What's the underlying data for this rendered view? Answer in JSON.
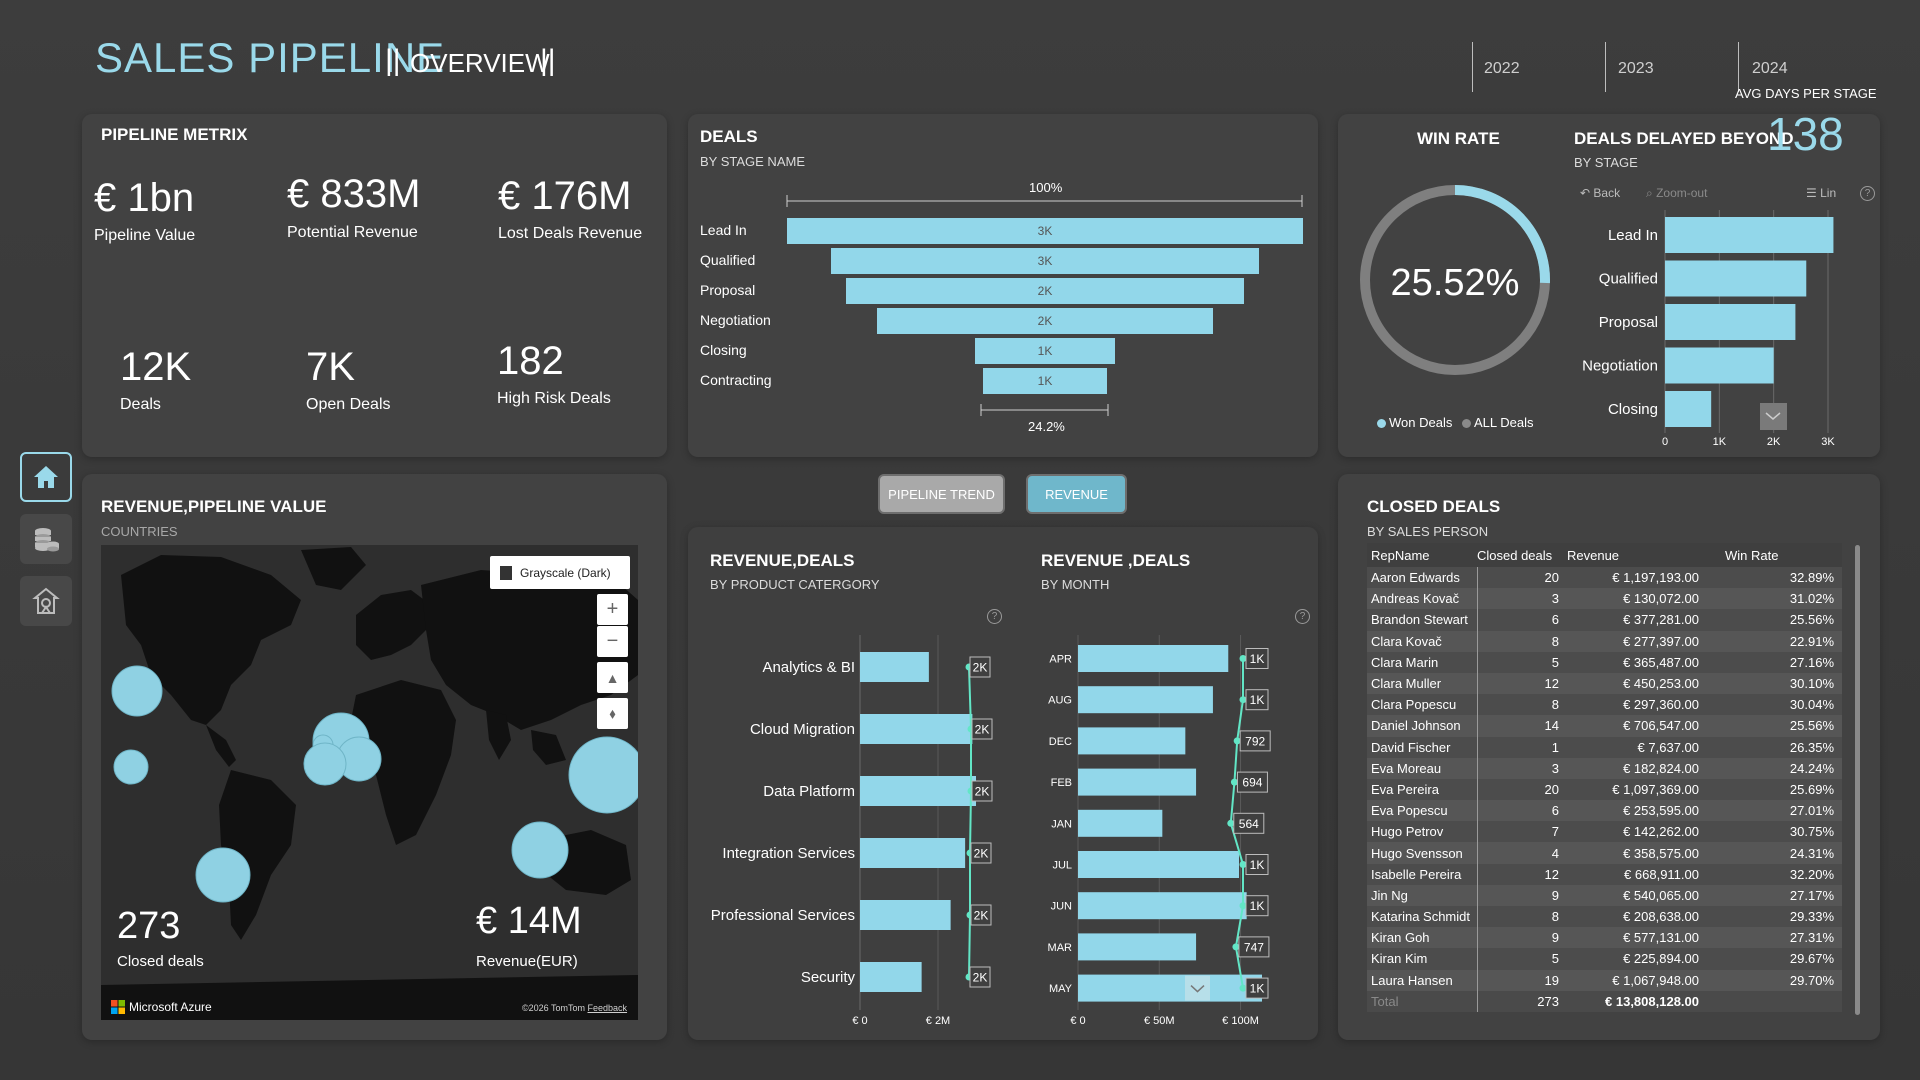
{
  "header": {
    "title": "SALES PIPELINE",
    "sep_left": "||",
    "subtitle": "OVERVIEW",
    "sep_right": "||",
    "years": [
      "2022",
      "2023",
      "2024"
    ],
    "avg_days_label": "AVG DAYS PER STAGE"
  },
  "nav": {
    "items": [
      {
        "name": "home-icon"
      },
      {
        "name": "database-icon"
      },
      {
        "name": "pipeline-icon"
      }
    ]
  },
  "pipeline_metrix": {
    "title": "PIPELINE METRIX",
    "metrics": [
      {
        "value": "€ 1bn",
        "label": "Pipeline Value"
      },
      {
        "value": "€ 833M",
        "label": "Potential Revenue"
      },
      {
        "value": "€ 176M",
        "label": "Lost Deals Revenue"
      },
      {
        "value": "12K",
        "label": "Deals"
      },
      {
        "value": "7K",
        "label": "Open Deals"
      },
      {
        "value": "182",
        "label": "High Risk Deals"
      }
    ]
  },
  "deals_funnel": {
    "title": "DEALS",
    "subtitle": "BY STAGE NAME",
    "top_pct": "100%",
    "bottom_pct": "24.2%",
    "stages": [
      {
        "label": "Lead In",
        "value_label": "3K",
        "fraction": 1.0
      },
      {
        "label": "Qualified",
        "value_label": "3K",
        "fraction": 0.83
      },
      {
        "label": "Proposal",
        "value_label": "2K",
        "fraction": 0.77
      },
      {
        "label": "Negotiation",
        "value_label": "2K",
        "fraction": 0.65
      },
      {
        "label": "Closing",
        "value_label": "1K",
        "fraction": 0.27
      },
      {
        "label": "Contracting",
        "value_label": "1K",
        "fraction": 0.242
      }
    ]
  },
  "win_rate": {
    "title": "WIN RATE",
    "value": "25.52%",
    "fraction": 0.2552,
    "legend": [
      "Won Deals",
      "ALL Deals"
    ],
    "colors": {
      "won": "#9ad9ea",
      "all": "#8a8a8a"
    }
  },
  "deals_delayed": {
    "title": "DEALS DELAYED BEYOND",
    "value": "138",
    "subtitle": "BY STAGE",
    "toolbar": {
      "back": "Back",
      "zoom": "Zoom-out",
      "lin": "Lin"
    },
    "ticks": [
      "0",
      "1K",
      "2K",
      "3K"
    ]
  },
  "map_panel": {
    "title": "REVENUE,PIPELINE VALUE",
    "subtitle": "COUNTRIES",
    "style_selector": "Grayscale (Dark)",
    "closed_deals_value": "273",
    "closed_deals_label": "Closed deals",
    "revenue_value": "€ 14M",
    "revenue_label": "Revenue(EUR)",
    "brand": "Microsoft Azure",
    "copyright": "©2026 TomTom",
    "feedback": "Feedback"
  },
  "tabs": {
    "pipeline_trend": "PIPELINE TREND",
    "revenue": "REVENUE"
  },
  "chart_data": [
    {
      "type": "bar",
      "title": "DEALS",
      "subtitle": "BY STAGE NAME",
      "categories": [
        "Lead In",
        "Qualified",
        "Proposal",
        "Negotiation",
        "Closing",
        "Contracting"
      ],
      "values": [
        3000,
        2500,
        2300,
        1950,
        820,
        730
      ],
      "data_labels": [
        "3K",
        "3K",
        "2K",
        "2K",
        "1K",
        "1K"
      ]
    },
    {
      "type": "bar",
      "title": "DEALS DELAYED BEYOND",
      "subtitle": "BY STAGE",
      "categories": [
        "Lead In",
        "Qualified",
        "Proposal",
        "Negotiation",
        "Closing"
      ],
      "values": [
        3100,
        2600,
        2400,
        2000,
        850
      ],
      "xlim": [
        0,
        3000
      ],
      "ticks": [
        "0",
        "1K",
        "2K",
        "3K"
      ]
    },
    {
      "type": "bar",
      "title": "REVENUE,DEALS",
      "subtitle": "BY PRODUCT CATERGORY",
      "categories": [
        "Analytics & BI",
        "Cloud Migration",
        "Data Platform",
        "Integration Services",
        "Professional Services",
        "Security"
      ],
      "values": [
        1.9,
        3.1,
        3.2,
        2.9,
        2.5,
        1.7
      ],
      "line_labels": [
        "2K",
        "2K",
        "2K",
        "2K",
        "2K",
        "2K"
      ],
      "line_values": [
        1.95,
        2.05,
        2.05,
        2.0,
        2.0,
        1.95
      ],
      "x_ticks": [
        "€ 0",
        "€ 2M"
      ]
    },
    {
      "type": "bar",
      "title": "REVENUE ,DEALS",
      "subtitle": "BY MONTH",
      "categories": [
        "APR",
        "AUG",
        "DEC",
        "FEB",
        "JAN",
        "JUL",
        "JUN",
        "MAR",
        "MAY"
      ],
      "values": [
        98,
        88,
        70,
        77,
        55,
        105,
        110,
        77,
        120
      ],
      "line_labels": [
        "1K",
        "1K",
        "792",
        "694",
        "564",
        "1K",
        "1K",
        "747",
        "1K"
      ],
      "line_values": [
        1000,
        1000,
        792,
        694,
        564,
        1000,
        1000,
        747,
        1000
      ],
      "x_ticks": [
        "€ 0",
        "€ 50M",
        "€ 100M"
      ]
    }
  ],
  "revenue_product": {
    "title": "REVENUE,DEALS",
    "subtitle": "BY PRODUCT CATERGORY"
  },
  "revenue_month": {
    "title": "REVENUE ,DEALS",
    "subtitle": "BY MONTH"
  },
  "closed_deals": {
    "title": "CLOSED DEALS",
    "subtitle": "BY SALES PERSON",
    "columns": [
      "RepName",
      "Closed deals",
      "Revenue",
      "Win Rate"
    ],
    "rows": [
      [
        "Aaron Edwards",
        "20",
        "€ 1,197,193.00",
        "32.89%"
      ],
      [
        "Andreas Kovač",
        "3",
        "€ 130,072.00",
        "31.02%"
      ],
      [
        "Brandon Stewart",
        "6",
        "€ 377,281.00",
        "25.56%"
      ],
      [
        "Clara Kovač",
        "8",
        "€ 277,397.00",
        "22.91%"
      ],
      [
        "Clara Marin",
        "5",
        "€ 365,487.00",
        "27.16%"
      ],
      [
        "Clara Muller",
        "12",
        "€ 450,253.00",
        "30.10%"
      ],
      [
        "Clara Popescu",
        "8",
        "€ 297,360.00",
        "30.04%"
      ],
      [
        "Daniel Johnson",
        "14",
        "€ 706,547.00",
        "25.56%"
      ],
      [
        "David Fischer",
        "1",
        "€ 7,637.00",
        "26.35%"
      ],
      [
        "Eva Moreau",
        "3",
        "€ 182,824.00",
        "24.24%"
      ],
      [
        "Eva Pereira",
        "20",
        "€ 1,097,369.00",
        "25.69%"
      ],
      [
        "Eva Popescu",
        "6",
        "€ 253,595.00",
        "27.01%"
      ],
      [
        "Hugo Petrov",
        "7",
        "€ 142,262.00",
        "30.75%"
      ],
      [
        "Hugo Svensson",
        "4",
        "€ 358,575.00",
        "24.31%"
      ],
      [
        "Isabelle Pereira",
        "12",
        "€ 668,911.00",
        "32.20%"
      ],
      [
        "Jin Ng",
        "9",
        "€ 540,065.00",
        "27.17%"
      ],
      [
        "Katarina Schmidt",
        "8",
        "€ 208,638.00",
        "29.33%"
      ],
      [
        "Kiran Goh",
        "9",
        "€ 577,131.00",
        "27.31%"
      ],
      [
        "Kiran Kim",
        "5",
        "€ 225,894.00",
        "29.67%"
      ],
      [
        "Laura Hansen",
        "19",
        "€ 1,067,948.00",
        "29.70%"
      ]
    ],
    "total": [
      "Total",
      "273",
      "€ 13,808,128.00",
      ""
    ]
  },
  "colors": {
    "accent": "#9ad9ea",
    "bar": "#92d7ea",
    "panel": "#424242",
    "background": "#3a3a3a"
  }
}
